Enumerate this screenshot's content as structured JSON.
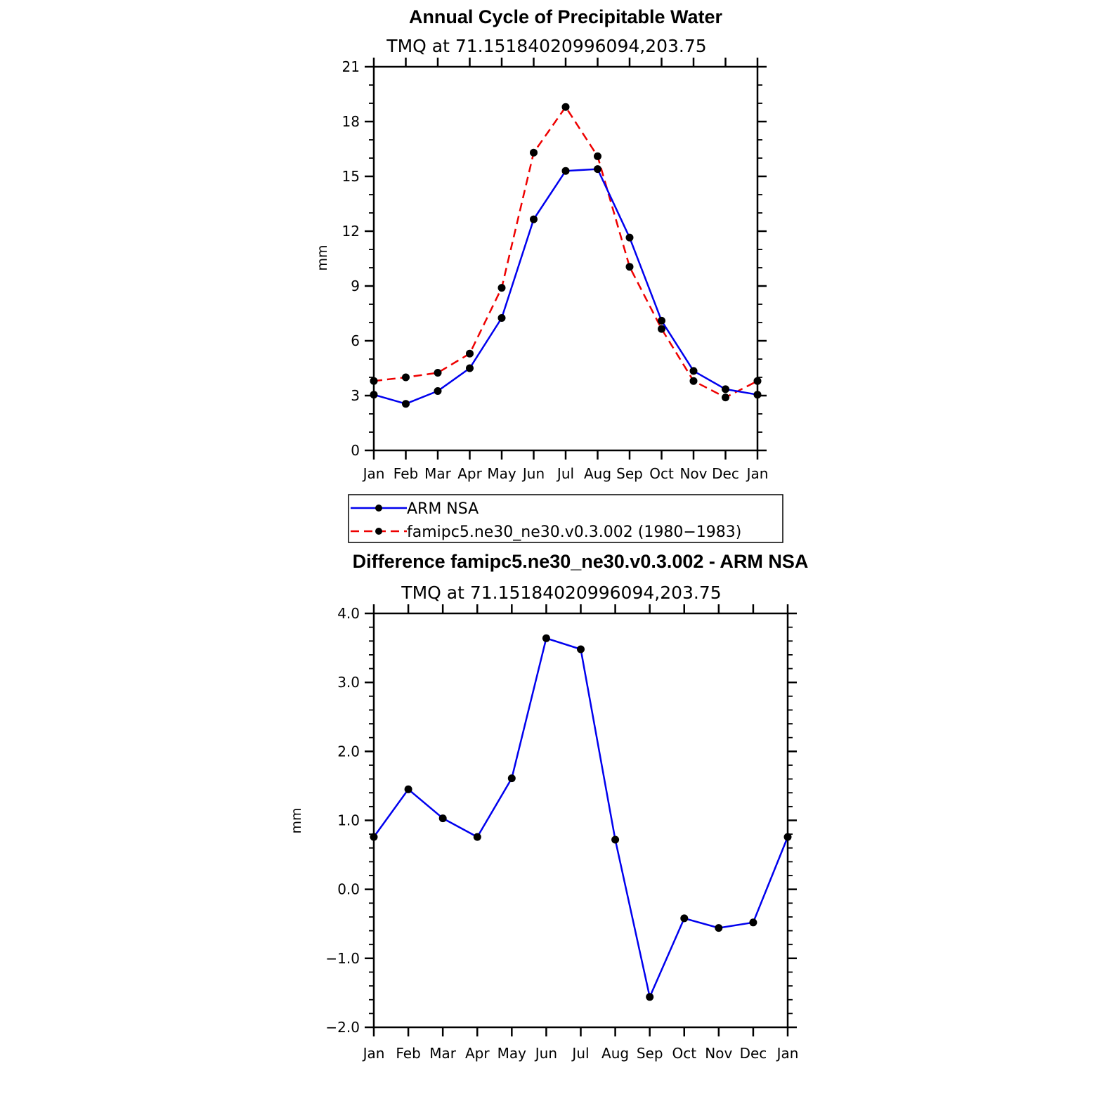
{
  "chart_data": [
    {
      "type": "line",
      "title": "Annual Cycle of Precipitable Water",
      "subtitle": "TMQ at 71.15184020996094,203.75",
      "xlabel": "",
      "ylabel": "mm",
      "categories": [
        "Jan",
        "Feb",
        "Mar",
        "Apr",
        "May",
        "Jun",
        "Jul",
        "Aug",
        "Sep",
        "Oct",
        "Nov",
        "Dec",
        "Jan"
      ],
      "ylim": [
        0,
        21
      ],
      "yticks": [
        "0",
        "3",
        "6",
        "9",
        "12",
        "15",
        "18",
        "21"
      ],
      "grid": false,
      "legend_position": "below",
      "series": [
        {
          "name": "ARM NSA",
          "color": "#0000ee",
          "style": "solid",
          "values": [
            3.05,
            2.55,
            3.25,
            4.5,
            7.25,
            12.65,
            15.3,
            15.4,
            11.65,
            7.1,
            4.35,
            3.35,
            3.05
          ]
        },
        {
          "name": "famipc5.ne30_ne30.v0.3.002 (1980−1983)",
          "color": "#ee0000",
          "style": "dashed",
          "values": [
            3.8,
            4.0,
            4.25,
            5.3,
            8.9,
            16.3,
            18.8,
            16.1,
            10.05,
            6.65,
            3.8,
            2.9,
            3.8
          ]
        }
      ]
    },
    {
      "type": "line",
      "title": "Difference famipc5.ne30_ne30.v0.3.002 - ARM NSA",
      "subtitle": "TMQ at 71.15184020996094,203.75",
      "xlabel": "",
      "ylabel": "mm",
      "categories": [
        "Jan",
        "Feb",
        "Mar",
        "Apr",
        "May",
        "Jun",
        "Jul",
        "Aug",
        "Sep",
        "Oct",
        "Nov",
        "Dec",
        "Jan"
      ],
      "ylim": [
        -2.0,
        4.0
      ],
      "yticks": [
        "−2.0",
        "−1.0",
        "0.0",
        "1.0",
        "2.0",
        "3.0",
        "4.0"
      ],
      "grid": false,
      "series": [
        {
          "name": "Difference",
          "color": "#0000ee",
          "style": "solid",
          "values": [
            0.76,
            1.45,
            1.03,
            0.76,
            1.61,
            3.64,
            3.48,
            0.72,
            -1.56,
            -0.42,
            -0.56,
            -0.48,
            0.76
          ]
        }
      ]
    }
  ]
}
